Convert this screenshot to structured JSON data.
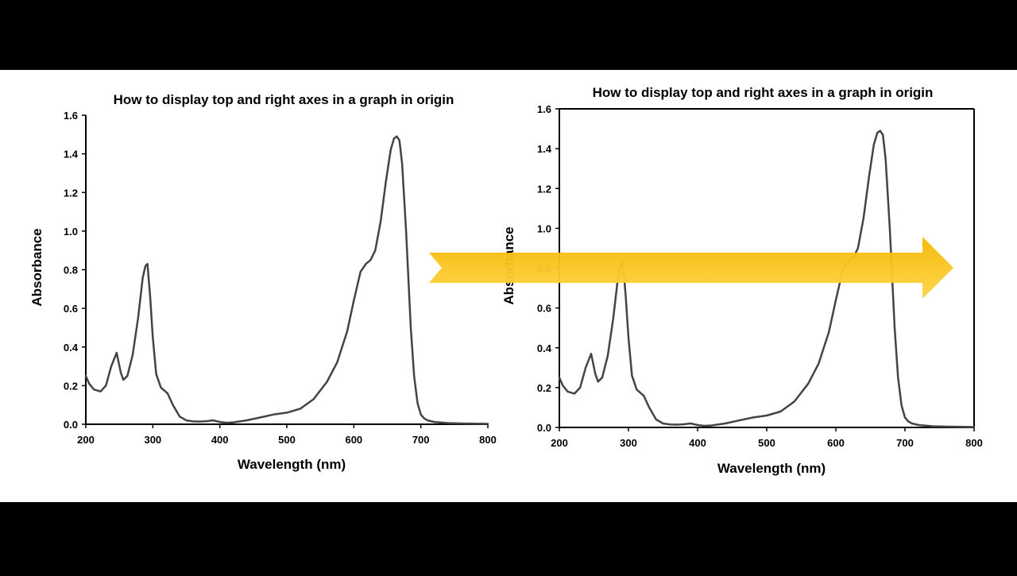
{
  "colors": {
    "letterbox": "#000000",
    "background": "#ffffff",
    "axis": "#000000",
    "curve": "#444444",
    "arrow_top": "#f5b800",
    "arrow_bottom": "#ffd54a"
  },
  "arrow": {
    "icon": "right-arrow-icon",
    "direction": "right"
  },
  "chart_data": [
    {
      "type": "line",
      "title": "How to display top and right axes in a graph in origin",
      "xlabel": "Wavelength (nm)",
      "ylabel": "Absorbance",
      "xlim": [
        200,
        800
      ],
      "ylim": [
        0,
        1.6
      ],
      "xticks": [
        200,
        300,
        400,
        500,
        600,
        700,
        800
      ],
      "yticks": [
        0.0,
        0.2,
        0.4,
        0.6,
        0.8,
        1.0,
        1.2,
        1.4,
        1.6
      ],
      "xtick_labels": [
        "200",
        "300",
        "400",
        "500",
        "600",
        "700",
        "800"
      ],
      "ytick_labels": [
        "0.0",
        "0.2",
        "0.4",
        "0.6",
        "0.8",
        "1.0",
        "1.2",
        "1.4",
        "1.6"
      ],
      "frame": "left-bottom",
      "grid": false,
      "series": [
        {
          "x": [
            200,
            205,
            212,
            222,
            230,
            238,
            246,
            252,
            256,
            262,
            270,
            278,
            285,
            289,
            292,
            296,
            300,
            305,
            312,
            322,
            330,
            340,
            350,
            360,
            370,
            380,
            390,
            400,
            410,
            420,
            440,
            460,
            480,
            500,
            520,
            540,
            560,
            575,
            590,
            600,
            610,
            618,
            625,
            632,
            640,
            648,
            655,
            660,
            664,
            668,
            672,
            678,
            685,
            690,
            695,
            700,
            705,
            710,
            720,
            740,
            760,
            780,
            800
          ],
          "y": [
            0.25,
            0.21,
            0.18,
            0.17,
            0.2,
            0.3,
            0.37,
            0.27,
            0.23,
            0.25,
            0.36,
            0.55,
            0.76,
            0.82,
            0.83,
            0.66,
            0.45,
            0.26,
            0.19,
            0.16,
            0.1,
            0.04,
            0.02,
            0.015,
            0.014,
            0.016,
            0.02,
            0.012,
            0.008,
            0.01,
            0.02,
            0.035,
            0.05,
            0.06,
            0.08,
            0.13,
            0.22,
            0.32,
            0.48,
            0.64,
            0.79,
            0.83,
            0.85,
            0.9,
            1.05,
            1.26,
            1.42,
            1.48,
            1.49,
            1.47,
            1.35,
            1.0,
            0.5,
            0.25,
            0.11,
            0.05,
            0.03,
            0.02,
            0.012,
            0.006,
            0.004,
            0.003,
            0.002
          ]
        }
      ]
    },
    {
      "type": "line",
      "title": "How to display top and right axes in a graph in origin",
      "xlabel": "Wavelength (nm)",
      "ylabel": "Absorbance",
      "xlim": [
        200,
        800
      ],
      "ylim": [
        0,
        1.6
      ],
      "xticks": [
        200,
        300,
        400,
        500,
        600,
        700,
        800
      ],
      "yticks": [
        0.0,
        0.2,
        0.4,
        0.6,
        0.8,
        1.0,
        1.2,
        1.4,
        1.6
      ],
      "xtick_labels": [
        "200",
        "300",
        "400",
        "500",
        "600",
        "700",
        "800"
      ],
      "ytick_labels": [
        "0.0",
        "0.2",
        "0.4",
        "0.6",
        "0.8",
        "1.0",
        "1.2",
        "1.4",
        "1.6"
      ],
      "frame": "box",
      "grid": false,
      "series": [
        {
          "x": [
            200,
            205,
            212,
            222,
            230,
            238,
            246,
            252,
            256,
            262,
            270,
            278,
            285,
            289,
            292,
            296,
            300,
            305,
            312,
            322,
            330,
            340,
            350,
            360,
            370,
            380,
            390,
            400,
            410,
            420,
            440,
            460,
            480,
            500,
            520,
            540,
            560,
            575,
            590,
            600,
            610,
            618,
            625,
            632,
            640,
            648,
            655,
            660,
            664,
            668,
            672,
            678,
            685,
            690,
            695,
            700,
            705,
            710,
            720,
            740,
            760,
            780,
            800
          ],
          "y": [
            0.25,
            0.21,
            0.18,
            0.17,
            0.2,
            0.3,
            0.37,
            0.27,
            0.23,
            0.25,
            0.36,
            0.55,
            0.76,
            0.82,
            0.83,
            0.66,
            0.45,
            0.26,
            0.19,
            0.16,
            0.1,
            0.04,
            0.02,
            0.015,
            0.014,
            0.016,
            0.02,
            0.012,
            0.008,
            0.01,
            0.02,
            0.035,
            0.05,
            0.06,
            0.08,
            0.13,
            0.22,
            0.32,
            0.48,
            0.64,
            0.79,
            0.83,
            0.85,
            0.9,
            1.05,
            1.26,
            1.42,
            1.48,
            1.49,
            1.47,
            1.35,
            1.0,
            0.5,
            0.25,
            0.11,
            0.05,
            0.03,
            0.02,
            0.012,
            0.006,
            0.004,
            0.003,
            0.002
          ]
        }
      ]
    }
  ]
}
